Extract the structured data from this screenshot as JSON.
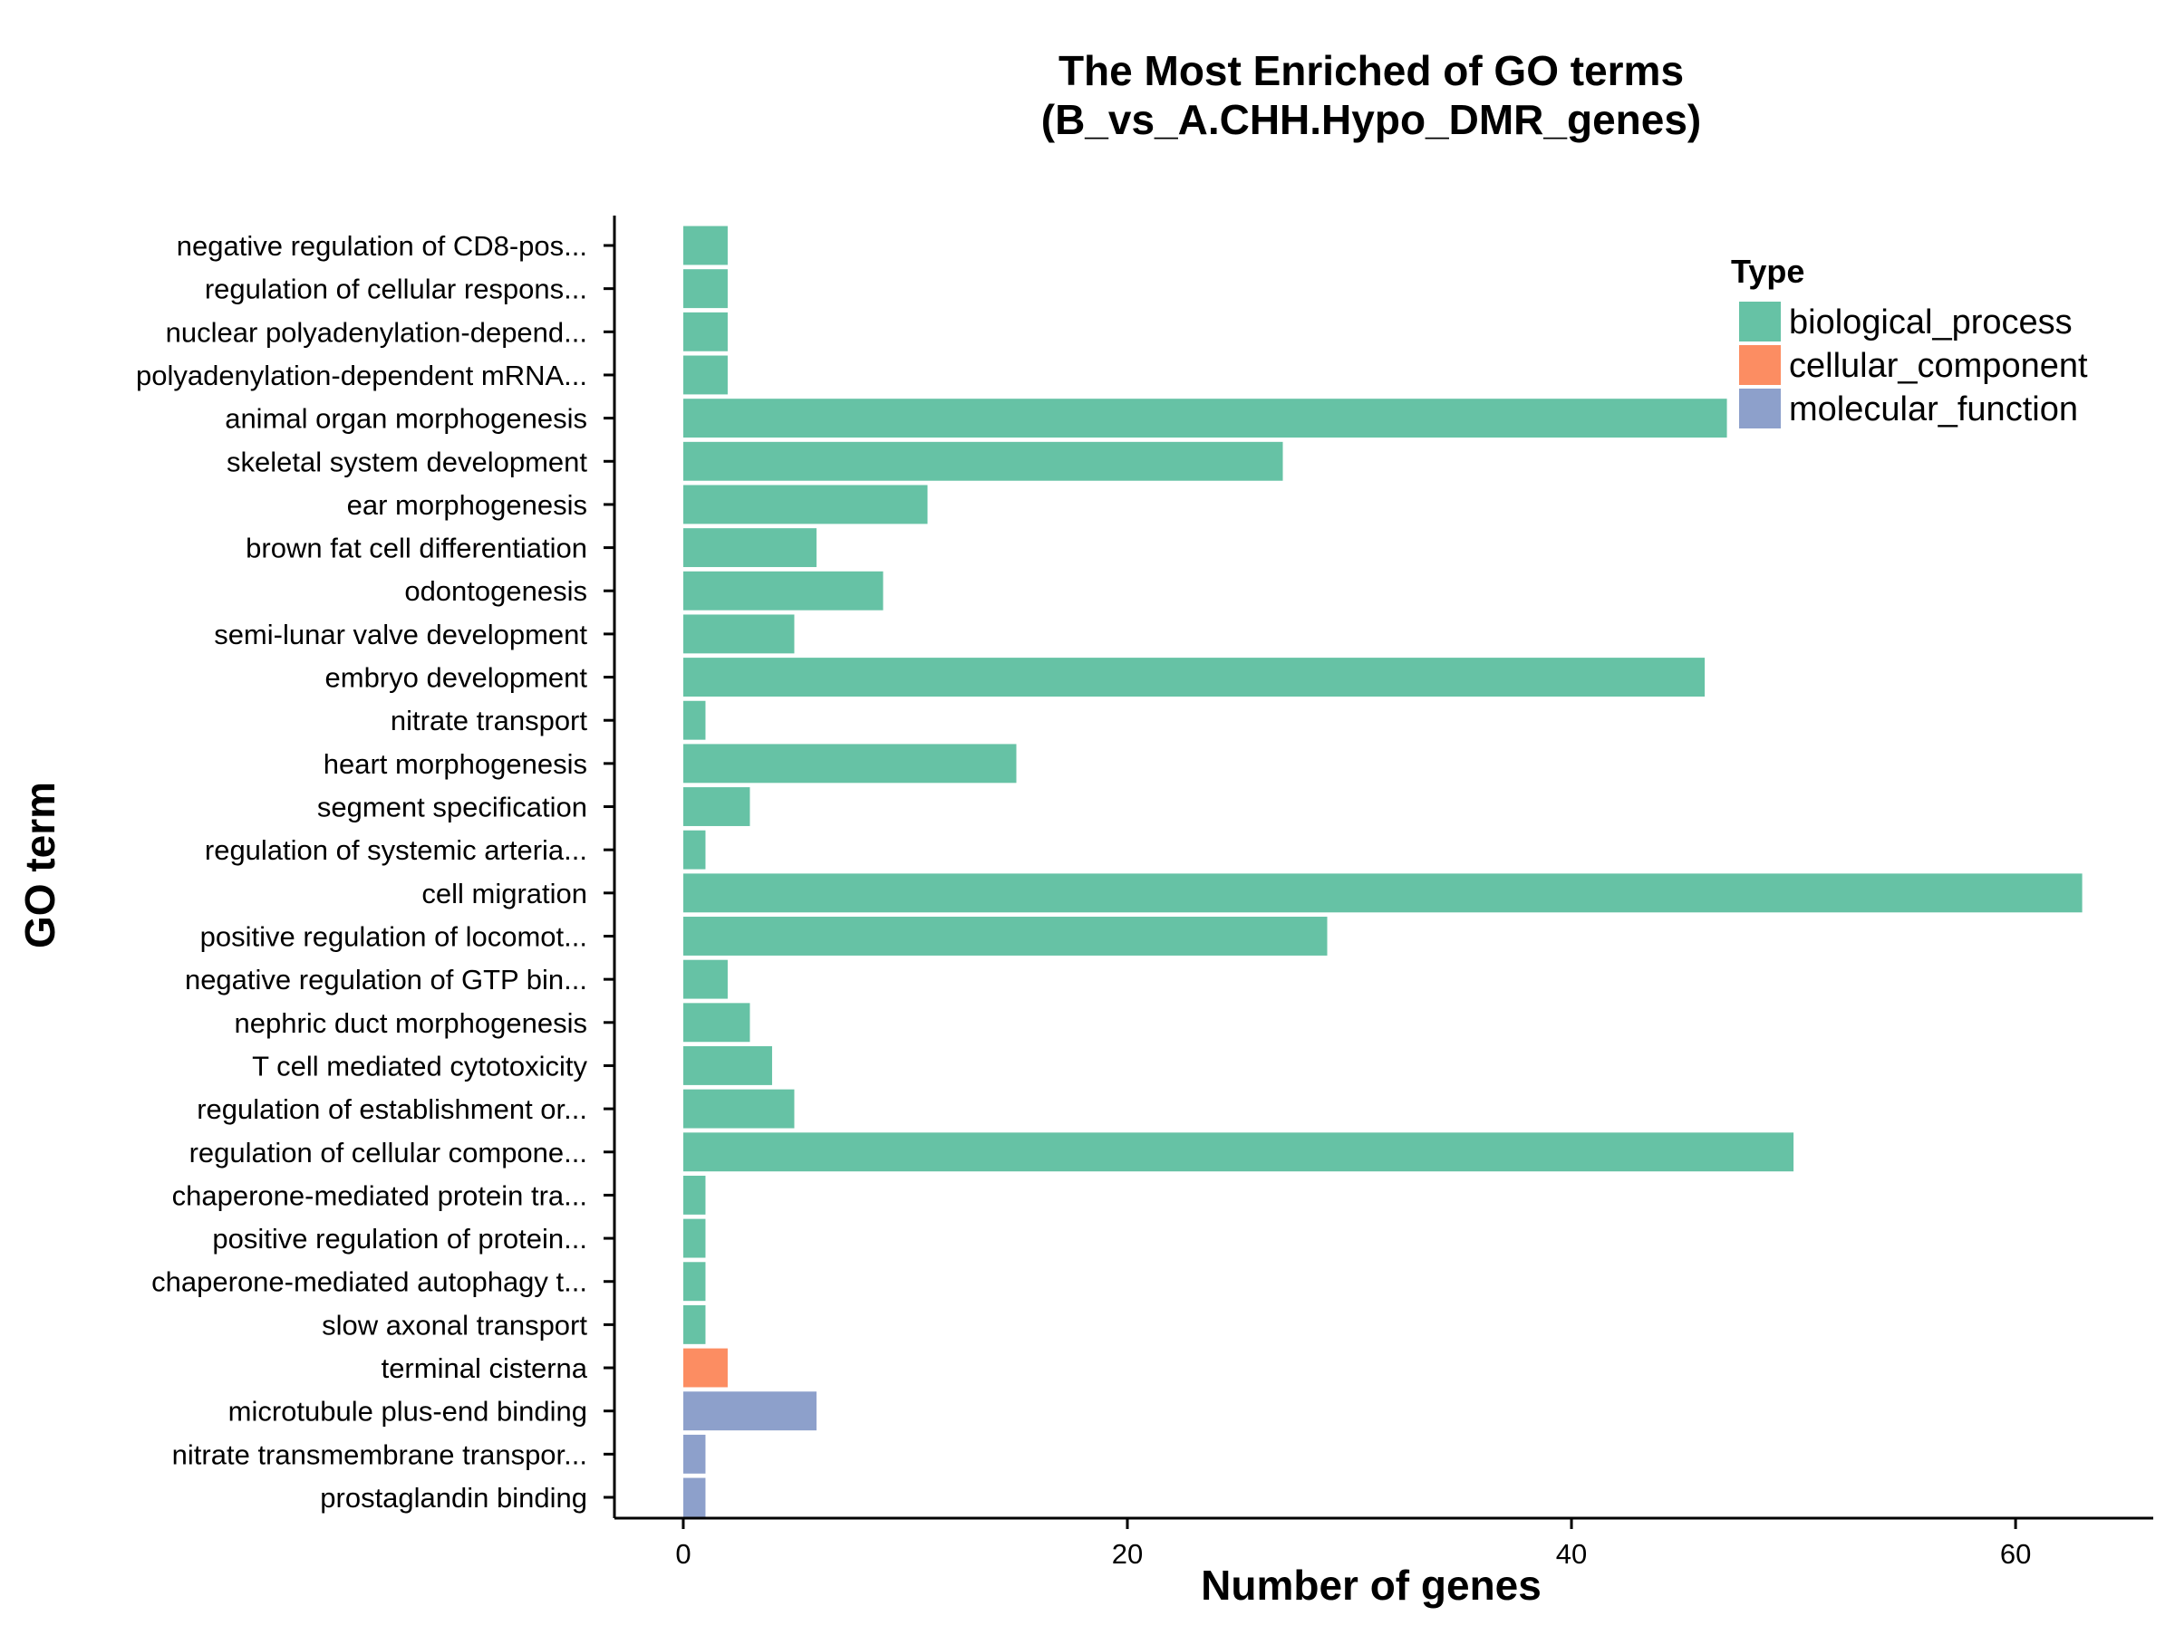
{
  "chart_data": {
    "type": "bar",
    "orientation": "horizontal",
    "title": "The Most Enriched of GO terms",
    "subtitle": "(B_vs_A.CHH.Hypo_DMR_genes)",
    "xlabel": "Number of genes",
    "ylabel": "GO term",
    "xlim": [
      -3.1,
      66.2
    ],
    "xticks": [
      0,
      20,
      40,
      60
    ],
    "grid": false,
    "legend": {
      "title": "Type",
      "position": "top-right",
      "items": [
        {
          "label": "biological_process",
          "color": "#66c2a5"
        },
        {
          "label": "cellular_component",
          "color": "#fc8d62"
        },
        {
          "label": "molecular_function",
          "color": "#8da0cb"
        }
      ]
    },
    "categories": [
      "negative regulation of CD8-pos...",
      "regulation of cellular respons...",
      "nuclear polyadenylation-depend...",
      "polyadenylation-dependent mRNA...",
      "animal organ morphogenesis",
      "skeletal system development",
      "ear morphogenesis",
      "brown fat cell differentiation",
      "odontogenesis",
      "semi-lunar valve development",
      "embryo development",
      "nitrate transport",
      "heart morphogenesis",
      "segment specification",
      "regulation of systemic arteria...",
      "cell migration",
      "positive regulation of locomot...",
      "negative regulation of GTP bin...",
      "nephric duct morphogenesis",
      "T cell mediated cytotoxicity",
      "regulation of establishment or...",
      "regulation of cellular compone...",
      "chaperone-mediated protein tra...",
      "positive regulation of protein...",
      "chaperone-mediated autophagy t...",
      "slow axonal transport",
      "terminal cisterna",
      "microtubule plus-end binding",
      "nitrate transmembrane transpor...",
      "prostaglandin binding"
    ],
    "values": [
      2,
      2,
      2,
      2,
      47,
      27,
      11,
      6,
      9,
      5,
      46,
      1,
      15,
      3,
      1,
      63,
      29,
      2,
      3,
      4,
      5,
      50,
      1,
      1,
      1,
      1,
      2,
      6,
      1,
      1
    ],
    "types": [
      "biological_process",
      "biological_process",
      "biological_process",
      "biological_process",
      "biological_process",
      "biological_process",
      "biological_process",
      "biological_process",
      "biological_process",
      "biological_process",
      "biological_process",
      "biological_process",
      "biological_process",
      "biological_process",
      "biological_process",
      "biological_process",
      "biological_process",
      "biological_process",
      "biological_process",
      "biological_process",
      "biological_process",
      "biological_process",
      "biological_process",
      "biological_process",
      "biological_process",
      "biological_process",
      "cellular_component",
      "molecular_function",
      "molecular_function",
      "molecular_function"
    ]
  }
}
